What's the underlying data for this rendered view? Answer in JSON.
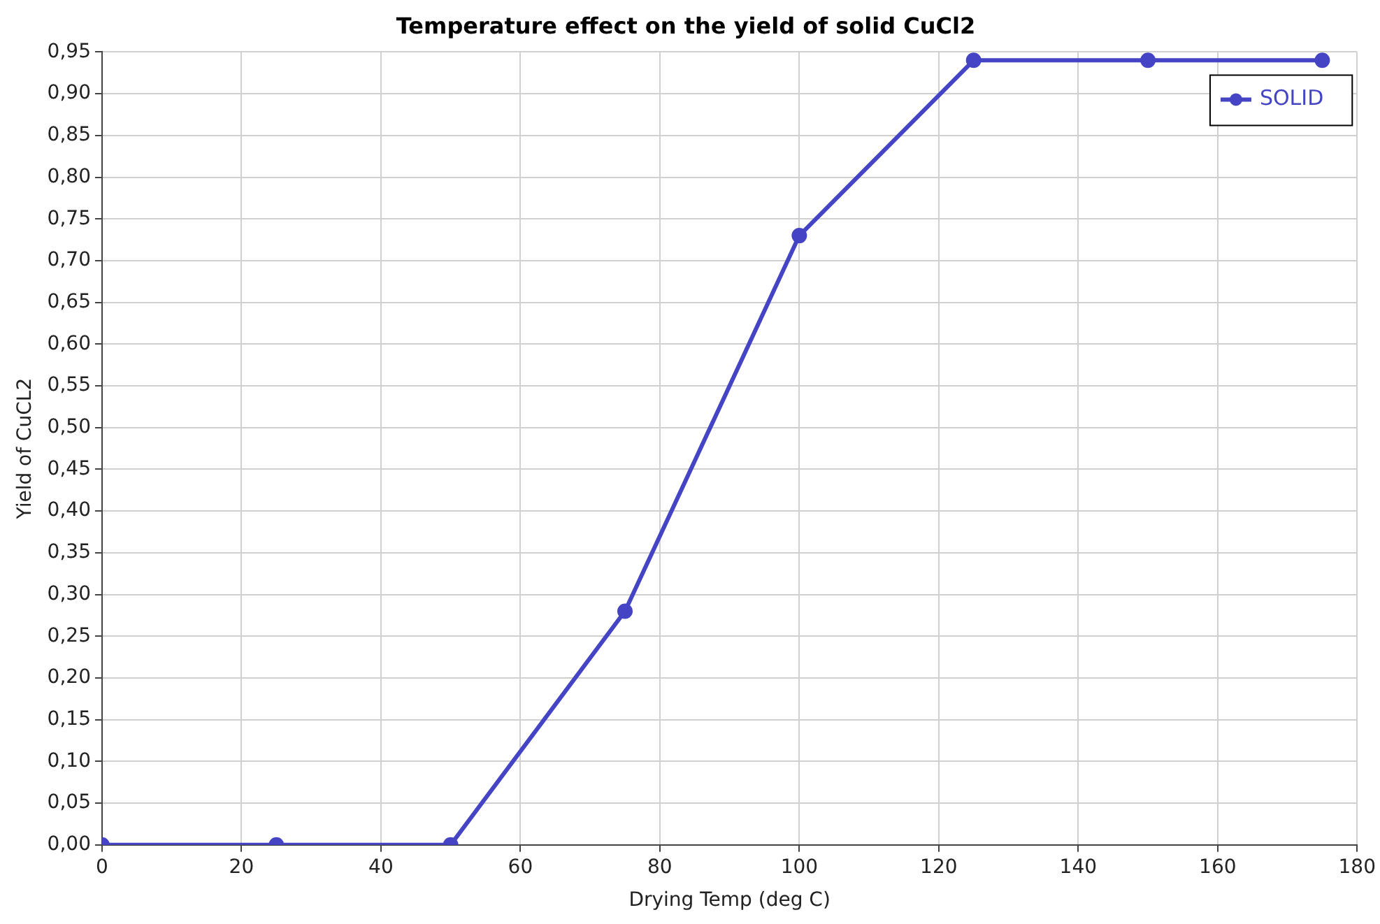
{
  "chart_data": {
    "type": "line",
    "title": "Temperature effect on the yield of solid CuCl2",
    "xlabel": "Drying Temp (deg C)",
    "ylabel": "Yield of CuCL2",
    "x": [
      0,
      25,
      50,
      75,
      100,
      125,
      150,
      175
    ],
    "series": [
      {
        "name": "SOLID",
        "color": "#4444c4",
        "values": [
          0,
          0,
          0,
          0.28,
          0.73,
          0.94,
          0.94,
          0.94
        ]
      }
    ],
    "xlim": [
      0,
      180
    ],
    "xticks": [
      0,
      20,
      40,
      60,
      80,
      100,
      120,
      140,
      160,
      180
    ],
    "ylim": [
      0,
      0.95
    ],
    "yticks": [
      {
        "value": 0,
        "label": "0,00"
      },
      {
        "value": 0.05,
        "label": "0,05"
      },
      {
        "value": 0.1,
        "label": "0,10"
      },
      {
        "value": 0.15,
        "label": "0,15"
      },
      {
        "value": 0.2,
        "label": "0,20"
      },
      {
        "value": 0.25,
        "label": "0,25"
      },
      {
        "value": 0.3,
        "label": "0,30"
      },
      {
        "value": 0.35,
        "label": "0,35"
      },
      {
        "value": 0.4,
        "label": "0,40"
      },
      {
        "value": 0.45,
        "label": "0,45"
      },
      {
        "value": 0.5,
        "label": "0,50"
      },
      {
        "value": 0.55,
        "label": "0,55"
      },
      {
        "value": 0.6,
        "label": "0,60"
      },
      {
        "value": 0.65,
        "label": "0,65"
      },
      {
        "value": 0.7,
        "label": "0,70"
      },
      {
        "value": 0.75,
        "label": "0,75"
      },
      {
        "value": 0.8,
        "label": "0,80"
      },
      {
        "value": 0.85,
        "label": "0,85"
      },
      {
        "value": 0.9,
        "label": "0,90"
      },
      {
        "value": 0.95,
        "label": "0,95"
      }
    ],
    "grid": true,
    "legend": "top right",
    "marker": "circle",
    "line_style": "solid"
  }
}
